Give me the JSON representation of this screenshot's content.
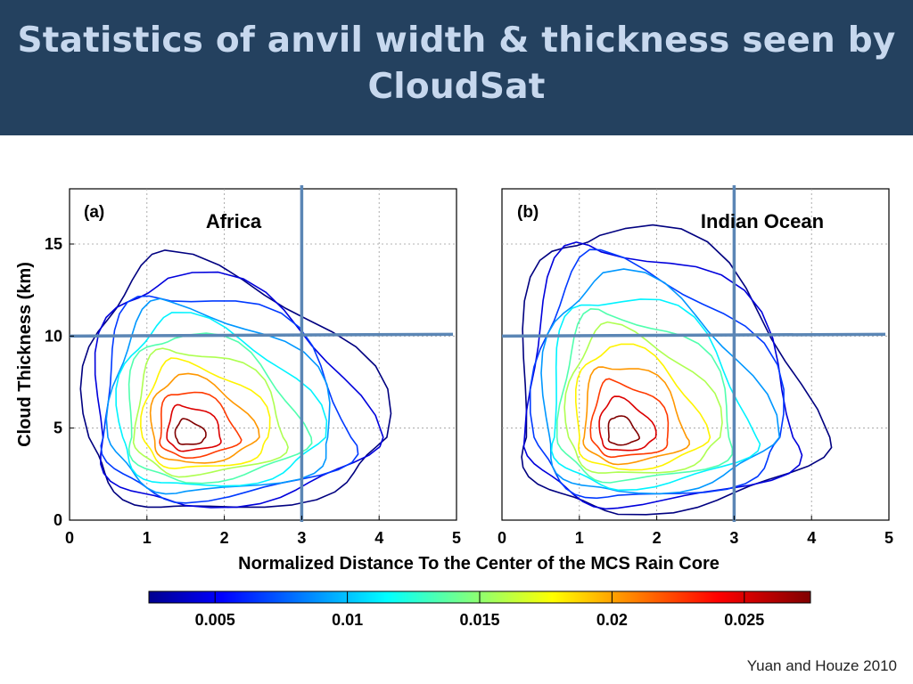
{
  "slide": {
    "title_line1": "Statistics of anvil width & thickness seen by",
    "title_line2": "CloudSat",
    "citation": "Yuan and Houze 2010"
  },
  "colors": {
    "header_bg": "#24415f",
    "title_text": "#c7d8ee",
    "reference_lines": "#5b86b5"
  },
  "chart_data": [
    {
      "type": "contour",
      "panel_label": "(a)",
      "region": "Africa",
      "xlabel": "Normalized Distance To the Center of the MCS Rain Core",
      "ylabel": "Cloud Thickness (km)",
      "xlim": [
        0,
        5
      ],
      "ylim": [
        0,
        18
      ],
      "xticks": [
        0,
        1,
        2,
        3,
        4,
        5
      ],
      "yticks": [
        0,
        5,
        10,
        15
      ],
      "grid": true,
      "reference_lines": {
        "vertical_x": 3,
        "horizontal_y": 10
      },
      "approx_peak": {
        "x": 1.5,
        "y": 4.5
      }
    },
    {
      "type": "contour",
      "panel_label": "(b)",
      "region": "Indian Ocean",
      "xlabel": "Normalized Distance To the Center of the MCS Rain Core",
      "xlim": [
        0,
        5
      ],
      "ylim": [
        0,
        18
      ],
      "xticks": [
        0,
        1,
        2,
        3,
        4,
        5
      ],
      "yticks": [
        0,
        5,
        10,
        15
      ],
      "grid": true,
      "reference_lines": {
        "vertical_x": 3,
        "horizontal_y": 10
      },
      "approx_peak": {
        "x": 1.5,
        "y": 4.5
      }
    }
  ],
  "colorbar": {
    "ticks": [
      0.005,
      0.01,
      0.015,
      0.02,
      0.025
    ],
    "tick_labels": [
      "0.005",
      "0.01",
      "0.015",
      "0.02",
      "0.025"
    ],
    "range": [
      0.0025,
      0.0275
    ]
  }
}
